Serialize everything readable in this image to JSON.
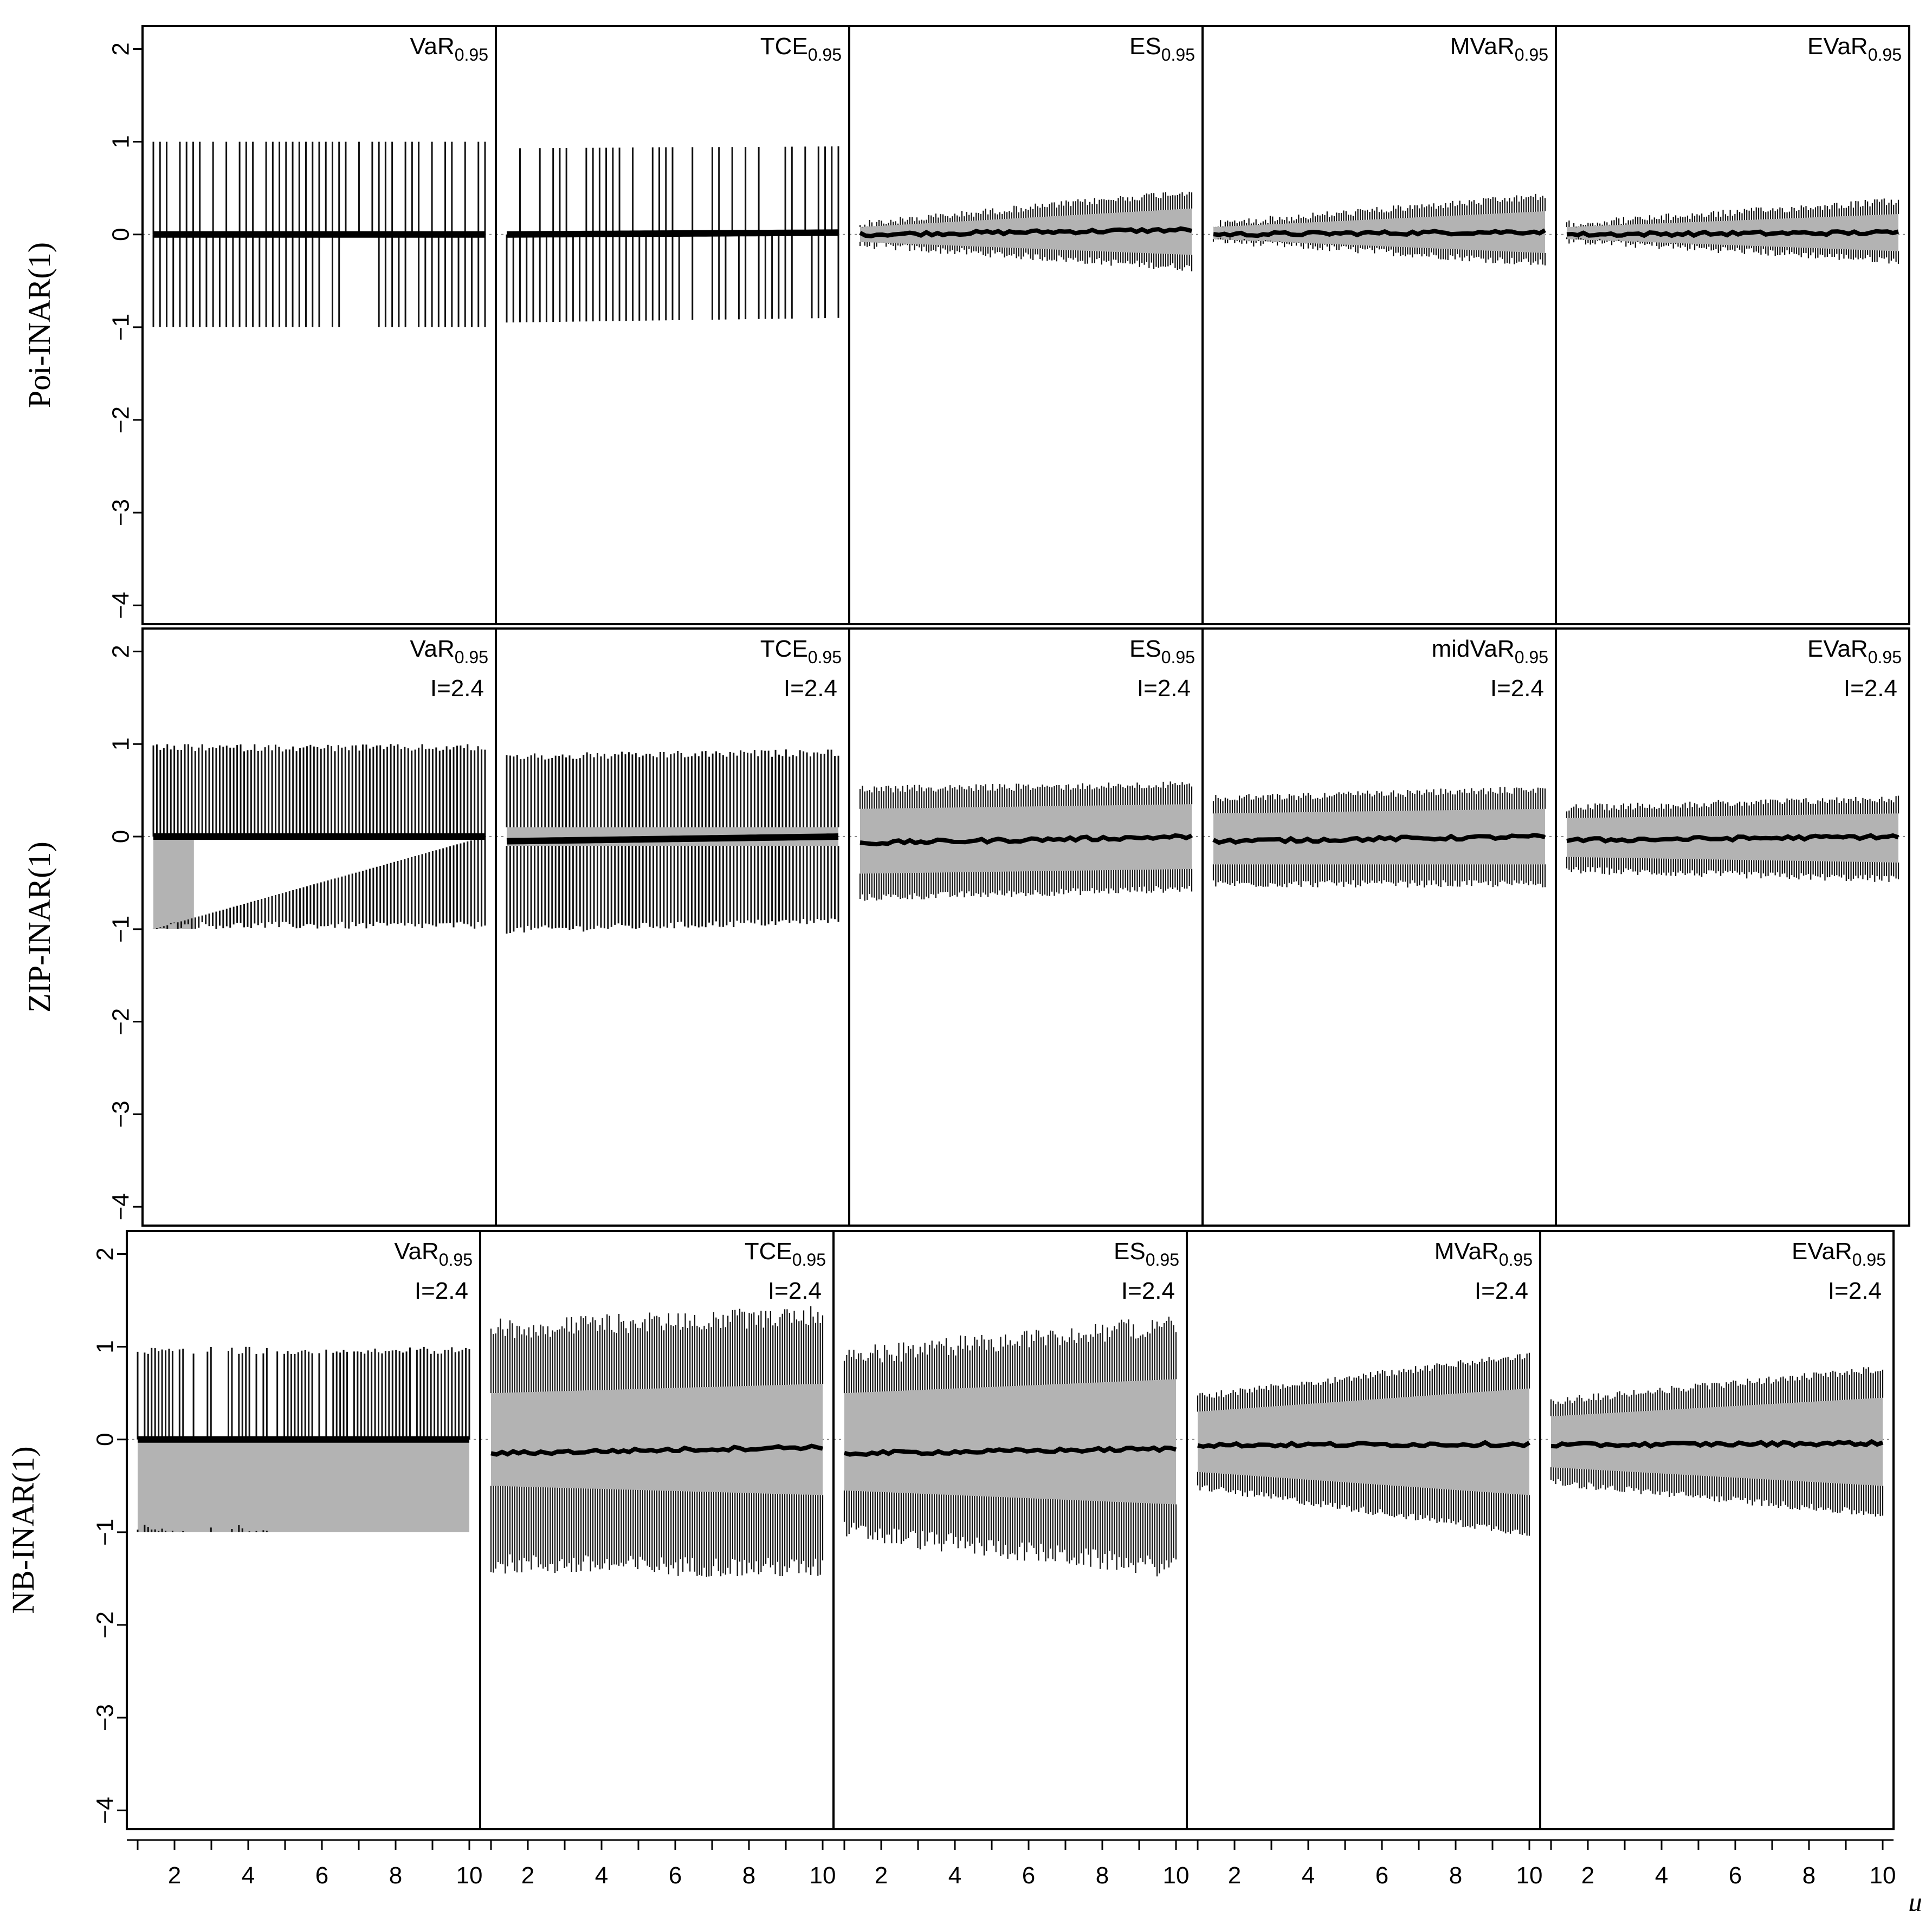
{
  "chart_data": {
    "type": "multi-panel band plot",
    "x_axis": {
      "label": "μ",
      "range": [
        1,
        10
      ],
      "ticks": [
        2,
        4,
        6,
        8,
        10
      ]
    },
    "y_axis": {
      "range": [
        -4,
        2
      ],
      "ticks": [
        2,
        1,
        0,
        -1,
        -2,
        -3,
        -4
      ]
    },
    "rows": [
      {
        "ylabel": "Poi-INAR(1)",
        "panels": [
          {
            "measure": "VaR",
            "sub": "0.95",
            "note": "",
            "lo": [
              -1,
              -1
            ],
            "hi": [
              1,
              1
            ],
            "glo": [
              0,
              0
            ],
            "ghi": [
              0,
              0
            ],
            "median": [
              0,
              0
            ],
            "style": "spikes"
          },
          {
            "measure": "TCE",
            "sub": "0.95",
            "note": "",
            "lo": [
              -0.95,
              -0.9
            ],
            "hi": [
              0.93,
              0.95
            ],
            "glo": [
              0,
              0
            ],
            "ghi": [
              0,
              0
            ],
            "median": [
              0,
              0.02
            ],
            "style": "spikes"
          },
          {
            "measure": "ES",
            "sub": "0.95",
            "note": "",
            "lo": [
              -0.15,
              -0.4
            ],
            "hi": [
              0.15,
              0.5
            ],
            "glo": [
              -0.08,
              -0.22
            ],
            "ghi": [
              0.08,
              0.28
            ],
            "median": [
              0,
              0.05
            ],
            "style": "band"
          },
          {
            "measure": "MVaR",
            "sub": "0.95",
            "note": "",
            "lo": [
              -0.1,
              -0.35
            ],
            "hi": [
              0.15,
              0.45
            ],
            "glo": [
              -0.05,
              -0.2
            ],
            "ghi": [
              0.08,
              0.25
            ],
            "median": [
              0,
              0.03
            ],
            "style": "band"
          },
          {
            "measure": "EVaR",
            "sub": "0.95",
            "note": "",
            "lo": [
              -0.1,
              -0.32
            ],
            "hi": [
              0.15,
              0.4
            ],
            "glo": [
              -0.05,
              -0.18
            ],
            "ghi": [
              0.08,
              0.22
            ],
            "median": [
              0,
              0.02
            ],
            "style": "band"
          }
        ]
      },
      {
        "ylabel": "ZIP-INAR(1)",
        "panels": [
          {
            "measure": "VaR",
            "sub": "0.95",
            "note": "I=2.4",
            "lo": [
              -1,
              -1
            ],
            "hi": [
              1,
              1
            ],
            "glo": [
              -1,
              0
            ],
            "ghi": [
              0,
              0
            ],
            "median": [
              0,
              0
            ],
            "style": "spikes-dense"
          },
          {
            "measure": "TCE",
            "sub": "0.95",
            "note": "I=2.4",
            "lo": [
              -1.05,
              -0.95
            ],
            "hi": [
              0.9,
              0.95
            ],
            "glo": [
              -0.1,
              -0.1
            ],
            "ghi": [
              0.1,
              0.1
            ],
            "median": [
              -0.05,
              0
            ],
            "style": "spikes-dense"
          },
          {
            "measure": "ES",
            "sub": "0.95",
            "note": "I=2.4",
            "lo": [
              -0.7,
              -0.6
            ],
            "hi": [
              0.55,
              0.6
            ],
            "glo": [
              -0.4,
              -0.35
            ],
            "ghi": [
              0.3,
              0.35
            ],
            "median": [
              -0.07,
              0
            ],
            "style": "band"
          },
          {
            "measure": "midVaR",
            "sub": "0.95",
            "note": "I=2.4",
            "lo": [
              -0.55,
              -0.55
            ],
            "hi": [
              0.45,
              0.55
            ],
            "glo": [
              -0.3,
              -0.3
            ],
            "ghi": [
              0.25,
              0.3
            ],
            "median": [
              -0.05,
              0
            ],
            "style": "band"
          },
          {
            "measure": "EVaR",
            "sub": "0.95",
            "note": "I=2.4",
            "lo": [
              -0.4,
              -0.5
            ],
            "hi": [
              0.35,
              0.45
            ],
            "glo": [
              -0.22,
              -0.28
            ],
            "ghi": [
              0.2,
              0.25
            ],
            "median": [
              -0.04,
              0
            ],
            "style": "band"
          }
        ]
      },
      {
        "ylabel": "NB-INAR(1)",
        "panels": [
          {
            "measure": "VaR",
            "sub": "0.95",
            "note": "I=2.4",
            "lo": [
              -1,
              -1
            ],
            "hi": [
              1,
              1
            ],
            "glo": [
              -1,
              -1
            ],
            "ghi": [
              0,
              0
            ],
            "median": [
              0,
              0
            ],
            "style": "spikes-nb"
          },
          {
            "measure": "TCE",
            "sub": "0.95",
            "note": "I=2.4",
            "lo": [
              -1.45,
              -1.5
            ],
            "hi": [
              1.3,
              1.45
            ],
            "glo": [
              -0.5,
              -0.6
            ],
            "ghi": [
              0.5,
              0.6
            ],
            "median": [
              -0.15,
              -0.08
            ],
            "style": "band-wide"
          },
          {
            "measure": "ES",
            "sub": "0.95",
            "note": "I=2.4",
            "lo": [
              -1.1,
              -1.5
            ],
            "hi": [
              1.0,
              1.35
            ],
            "glo": [
              -0.55,
              -0.7
            ],
            "ghi": [
              0.5,
              0.65
            ],
            "median": [
              -0.15,
              -0.1
            ],
            "style": "band-wide"
          },
          {
            "measure": "MVaR",
            "sub": "0.95",
            "note": "I=2.4",
            "lo": [
              -0.55,
              -1.05
            ],
            "hi": [
              0.5,
              0.95
            ],
            "glo": [
              -0.35,
              -0.6
            ],
            "ghi": [
              0.3,
              0.55
            ],
            "median": [
              -0.06,
              -0.05
            ],
            "style": "band"
          },
          {
            "measure": "EVaR",
            "sub": "0.95",
            "note": "I=2.4",
            "lo": [
              -0.5,
              -0.85
            ],
            "hi": [
              0.45,
              0.8
            ],
            "glo": [
              -0.3,
              -0.5
            ],
            "ghi": [
              0.25,
              0.45
            ],
            "median": [
              -0.06,
              -0.04
            ],
            "style": "band"
          }
        ]
      }
    ]
  }
}
